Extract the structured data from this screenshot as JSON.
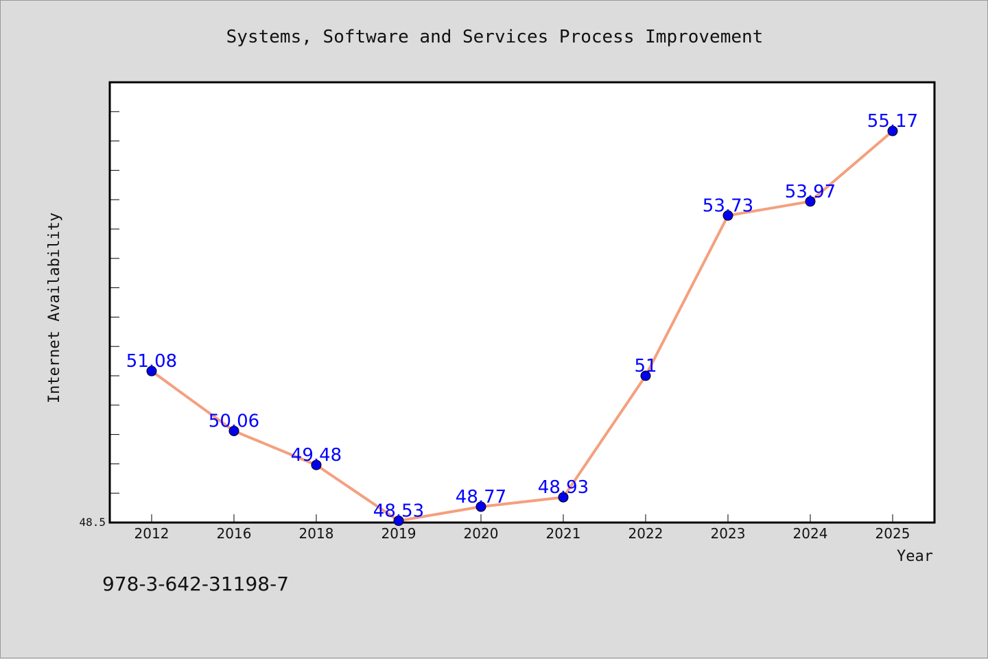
{
  "chart_data": {
    "type": "line",
    "title": "Systems, Software and Services Process Improvement",
    "xlabel": "Year",
    "ylabel": "Internet Availability",
    "categories": [
      "2012",
      "2016",
      "2018",
      "2019",
      "2020",
      "2021",
      "2022",
      "2023",
      "2024",
      "2025"
    ],
    "series": [
      {
        "values": [
          51.08,
          50.06,
          49.48,
          48.53,
          48.77,
          48.93,
          51.0,
          53.73,
          53.97,
          55.17
        ],
        "labels": [
          "51.08",
          "50.06",
          "49.48",
          "48.53",
          "48.77",
          "48.93",
          "51",
          "53.73",
          "53.97",
          "55.17"
        ]
      }
    ],
    "ylim": [
      48.5,
      56.0
    ],
    "y_tick_labels": [
      "48.5"
    ],
    "grid": false,
    "legend": "none",
    "colors": {
      "line": "#f4a07e",
      "marker": "#0000ee",
      "data_label": "#0000ff",
      "background": "#dcdcdc",
      "plot_area": "#ffffff"
    }
  },
  "footer": {
    "isbn": "978-3-642-31198-7"
  }
}
